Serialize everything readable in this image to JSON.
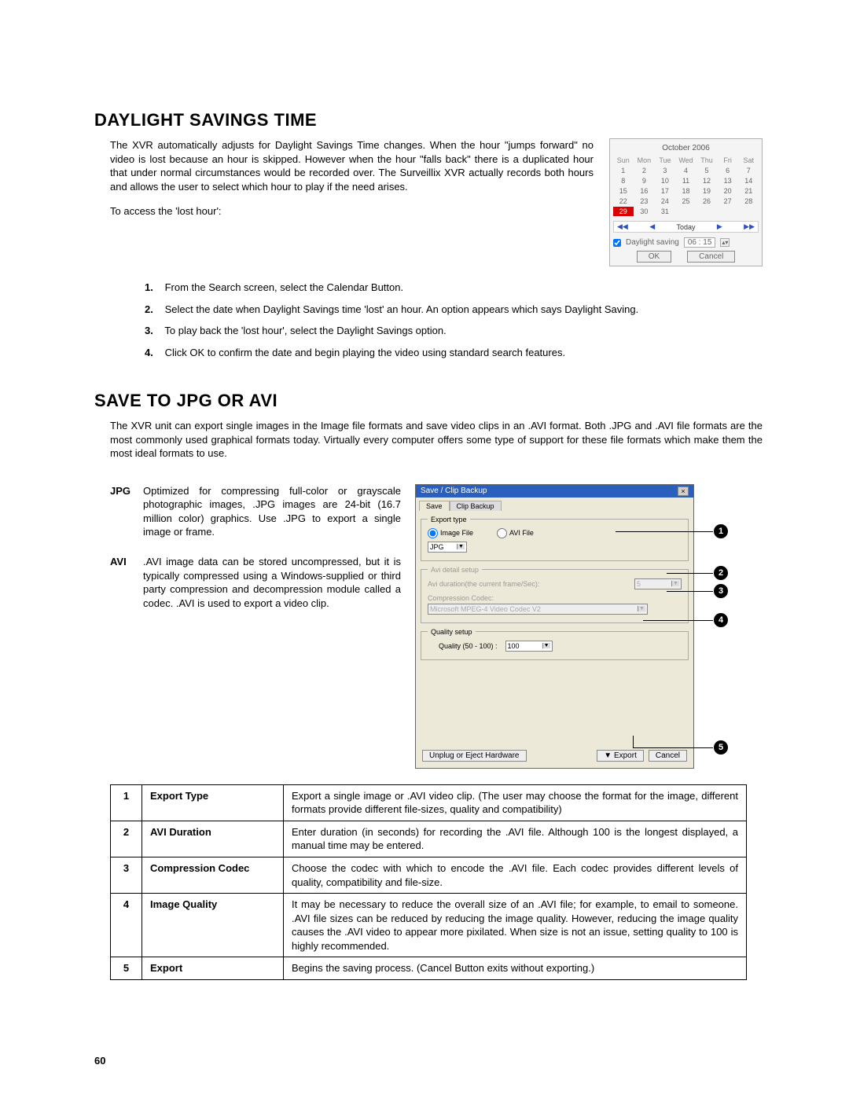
{
  "section1": {
    "heading": "DAYLIGHT SAVINGS TIME",
    "intro": "The XVR automatically adjusts for Daylight Savings Time changes. When the hour \"jumps forward\" no video is lost because an hour is skipped.  However when the hour \"falls back\" there is a duplicated hour that under normal circumstances would be recorded over.  The Surveillix XVR actually records both hours and allows the user to select which hour to play if the need arises.",
    "access_line": "To access the 'lost hour':",
    "steps": [
      "From the Search screen, select the Calendar Button.",
      "Select the date when Daylight Savings time 'lost' an hour. An option appears which says Daylight Saving.",
      "To play back the 'lost hour', select the Daylight Savings option.",
      "Click OK to confirm the date and begin playing the video using standard search features."
    ]
  },
  "calendar": {
    "month_title": "October 2006",
    "day_headers": [
      "Sun",
      "Mon",
      "Tue",
      "Wed",
      "Thu",
      "Fri",
      "Sat"
    ],
    "weeks": [
      [
        "1",
        "2",
        "3",
        "4",
        "5",
        "6",
        "7"
      ],
      [
        "8",
        "9",
        "10",
        "11",
        "12",
        "13",
        "14"
      ],
      [
        "15",
        "16",
        "17",
        "18",
        "19",
        "20",
        "21"
      ],
      [
        "22",
        "23",
        "24",
        "25",
        "26",
        "27",
        "28"
      ],
      [
        "29",
        "30",
        "31",
        "",
        "",
        "",
        ""
      ]
    ],
    "selected_day": "29",
    "nav_first": "◀◀",
    "nav_prev": "◀",
    "today_label": "Today",
    "nav_next": "▶",
    "nav_last": "▶▶",
    "checkbox_label": "Daylight saving",
    "time_value": "06 : 15",
    "ok_btn": "OK",
    "cancel_btn": "Cancel"
  },
  "section2": {
    "heading": "SAVE TO JPG OR AVI",
    "intro": "The XVR unit can export single images in the Image file formats and save video clips in an .AVI format.  Both .JPG and .AVI file formats are the most commonly used graphical formats today.  Virtually every computer offers some type of support for these file formats which make them the most ideal formats to use.",
    "jpg_label": "JPG",
    "jpg_desc": "Optimized for compressing full-color or grayscale photographic images, .JPG images are 24-bit (16.7 million color) graphics. Use .JPG to export a single image or frame.",
    "avi_label": "AVI",
    "avi_desc": ".AVI image data can be stored uncompressed, but it is typically compressed using a Windows-supplied or third party compression and decompression module called a codec.  .AVI is used to export a video clip."
  },
  "dialog": {
    "title": "Save / Clip Backup",
    "tab1": "Save",
    "tab2": "Clip Backup",
    "export_type_legend": "Export type",
    "radio_image": "Image File",
    "radio_avi": "AVI File",
    "jpg_option": "JPG",
    "avi_detail_legend": "Avi detail setup",
    "avi_duration_label": "Avi duration(the current frame/Sec):",
    "avi_duration_value": "5",
    "codec_label": "Compression Codec:",
    "codec_value": "Microsoft MPEG-4 Video Codec V2",
    "quality_legend": "Quality setup",
    "quality_label": "Quality (50 - 100) :",
    "quality_value": "100",
    "unplug_btn": "Unplug or Eject Hardware",
    "export_btn": "Export",
    "cancel_btn": "Cancel"
  },
  "callouts": {
    "n1": "1",
    "n2": "2",
    "n3": "3",
    "n4": "4",
    "n5": "5"
  },
  "ref_table": [
    {
      "num": "1",
      "name": "Export Type",
      "desc": "Export a single image or .AVI video clip. (The user may choose the format for the  image, different formats provide different file-sizes, quality and compatibility)"
    },
    {
      "num": "2",
      "name": "AVI Duration",
      "desc": "Enter duration (in seconds) for recording the .AVI file.  Although 100 is the longest displayed, a manual time may be entered."
    },
    {
      "num": "3",
      "name": "Compression Codec",
      "desc": "Choose the codec with which to encode the .AVI file. Each codec provides different levels of quality, compatibility and file-size."
    },
    {
      "num": "4",
      "name": "Image Quality",
      "desc": "It may be necessary to reduce the overall size of an .AVI file; for example, to email to someone.  .AVI file sizes can be reduced by reducing the image quality.  However, reducing the image quality causes the .AVI video to appear more pixilated.  When size is not an issue, setting quality to 100 is highly recommended."
    },
    {
      "num": "5",
      "name": "Export",
      "desc": "Begins the saving process. (Cancel Button exits without exporting.)"
    }
  ],
  "page_number": "60"
}
